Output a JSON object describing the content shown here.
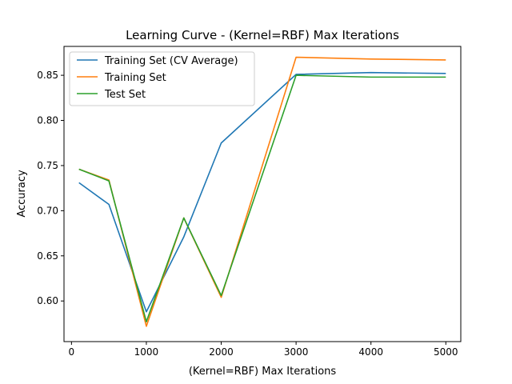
{
  "chart_data": {
    "type": "line",
    "title": "Learning Curve - (Kernel=RBF) Max Iterations",
    "xlabel": "(Kernel=RBF) Max Iterations",
    "ylabel": "Accuracy",
    "xlim": [
      -100,
      5200
    ],
    "ylim": [
      0.555,
      0.882
    ],
    "xticks": [
      0,
      1000,
      2000,
      3000,
      4000,
      5000
    ],
    "yticks": [
      0.6,
      0.65,
      0.7,
      0.75,
      0.8,
      0.85
    ],
    "xtick_labels": [
      "0",
      "1000",
      "2000",
      "3000",
      "4000",
      "5000"
    ],
    "ytick_labels": [
      "0.60",
      "0.65",
      "0.70",
      "0.75",
      "0.80",
      "0.85"
    ],
    "grid": false,
    "legend_position": "top-left",
    "x": [
      100,
      500,
      1000,
      1500,
      2000,
      3000,
      4000,
      5000
    ],
    "series": [
      {
        "name": "Training Set (CV Average)",
        "color": "#1f77b4",
        "values": [
          0.731,
          0.707,
          0.588,
          0.671,
          0.775,
          0.851,
          0.853,
          0.852
        ]
      },
      {
        "name": "Training Set",
        "color": "#ff7f0e",
        "values": [
          0.746,
          0.734,
          0.572,
          0.692,
          0.604,
          0.87,
          0.868,
          0.867
        ]
      },
      {
        "name": "Test Set",
        "color": "#2ca02c",
        "values": [
          0.746,
          0.733,
          0.577,
          0.692,
          0.606,
          0.85,
          0.848,
          0.848
        ]
      }
    ]
  }
}
